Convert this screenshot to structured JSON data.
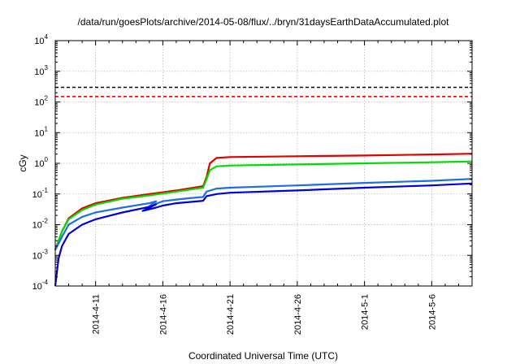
{
  "chart_data": {
    "type": "line",
    "title": "/data/run/goesPlots/archive/2014-05-08/flux/../bryn/31daysEarthDataAccumulated.plot",
    "xlabel": "Coordinated Universal Time (UTC)",
    "ylabel": "cGy",
    "yscale": "log",
    "ylim": [
      0.0001,
      10000
    ],
    "xlim": [
      "2014-04-08",
      "2014-05-09"
    ],
    "y_ticks": [
      {
        "value": 0.0001,
        "mant": "10",
        "exp": "-4"
      },
      {
        "value": 0.001,
        "mant": "10",
        "exp": "-3"
      },
      {
        "value": 0.01,
        "mant": "10",
        "exp": "-2"
      },
      {
        "value": 0.1,
        "mant": "10",
        "exp": "-1"
      },
      {
        "value": 1,
        "mant": "10",
        "exp": "0"
      },
      {
        "value": 10,
        "mant": "10",
        "exp": "1"
      },
      {
        "value": 100,
        "mant": "10",
        "exp": "2"
      },
      {
        "value": 1000,
        "mant": "10",
        "exp": "3"
      },
      {
        "value": 10000,
        "mant": "10",
        "exp": "4"
      }
    ],
    "x_ticks": [
      {
        "value": "2014-04-11",
        "label": "2014-4-11"
      },
      {
        "value": "2014-04-16",
        "label": "2014-4-16"
      },
      {
        "value": "2014-04-21",
        "label": "2014-4-21"
      },
      {
        "value": "2014-04-26",
        "label": "2014-4-26"
      },
      {
        "value": "2014-05-01",
        "label": "2014-5-1"
      },
      {
        "value": "2014-05-06",
        "label": "2014-5-6"
      }
    ],
    "grid": true,
    "reference_lines": [
      {
        "y": 300,
        "color": "#000000",
        "style": "dashed"
      },
      {
        "y": 150,
        "color": "#ff0000",
        "style": "dashed"
      }
    ],
    "series": [
      {
        "color": "#e00000",
        "points": [
          [
            "2014-04-08T00:00",
            0.0015
          ],
          [
            "2014-04-08T12:00",
            0.006
          ],
          [
            "2014-04-09T00:00",
            0.016
          ],
          [
            "2014-04-10T00:00",
            0.034
          ],
          [
            "2014-04-11T00:00",
            0.05
          ],
          [
            "2014-04-13T00:00",
            0.075
          ],
          [
            "2014-04-15T00:00",
            0.1
          ],
          [
            "2014-04-17T00:00",
            0.13
          ],
          [
            "2014-04-19T00:00",
            0.18
          ],
          [
            "2014-04-19T06:00",
            0.35
          ],
          [
            "2014-04-19T12:00",
            1.0
          ],
          [
            "2014-04-20T00:00",
            1.5
          ],
          [
            "2014-04-21T00:00",
            1.6
          ],
          [
            "2014-04-26T00:00",
            1.7
          ],
          [
            "2014-05-01T00:00",
            1.8
          ],
          [
            "2014-05-06T00:00",
            1.95
          ],
          [
            "2014-05-09T00:00",
            2.05
          ]
        ]
      },
      {
        "color": "#00dd00",
        "points": [
          [
            "2014-04-08T00:00",
            0.0015
          ],
          [
            "2014-04-08T12:00",
            0.006
          ],
          [
            "2014-04-09T00:00",
            0.015
          ],
          [
            "2014-04-10T00:00",
            0.03
          ],
          [
            "2014-04-11T00:00",
            0.045
          ],
          [
            "2014-04-13T00:00",
            0.07
          ],
          [
            "2014-04-15T00:00",
            0.09
          ],
          [
            "2014-04-17T00:00",
            0.12
          ],
          [
            "2014-04-19T00:00",
            0.16
          ],
          [
            "2014-04-19T06:00",
            0.3
          ],
          [
            "2014-04-19T12:00",
            0.6
          ],
          [
            "2014-04-20T00:00",
            0.8
          ],
          [
            "2014-04-21T00:00",
            0.85
          ],
          [
            "2014-04-26T00:00",
            0.92
          ],
          [
            "2014-05-01T00:00",
            1.0
          ],
          [
            "2014-05-06T00:00",
            1.08
          ],
          [
            "2014-05-09T00:00",
            1.15
          ]
        ]
      },
      {
        "color": "#1e6fe0",
        "points": [
          [
            "2014-04-08T00:00",
            0.0015
          ],
          [
            "2014-04-08T12:00",
            0.004
          ],
          [
            "2014-04-09T00:00",
            0.01
          ],
          [
            "2014-04-10T00:00",
            0.018
          ],
          [
            "2014-04-11T00:00",
            0.025
          ],
          [
            "2014-04-13T00:00",
            0.036
          ],
          [
            "2014-04-15T00:00",
            0.05
          ],
          [
            "2014-04-15T12:00",
            0.058
          ],
          [
            "2014-04-15T00:00",
            0.04
          ],
          [
            "2014-04-16T00:00",
            0.058
          ],
          [
            "2014-04-17T00:00",
            0.066
          ],
          [
            "2014-04-18T00:00",
            0.073
          ],
          [
            "2014-04-19T00:00",
            0.08
          ],
          [
            "2014-04-19T06:00",
            0.12
          ],
          [
            "2014-04-20T00:00",
            0.15
          ],
          [
            "2014-04-21T00:00",
            0.16
          ],
          [
            "2014-04-26T00:00",
            0.19
          ],
          [
            "2014-05-01T00:00",
            0.23
          ],
          [
            "2014-05-06T00:00",
            0.27
          ],
          [
            "2014-05-09T00:00",
            0.31
          ]
        ]
      },
      {
        "color": "#0000dd",
        "points": [
          [
            "2014-04-08T00:00",
            0.0001
          ],
          [
            "2014-04-08T06:00",
            0.0008
          ],
          [
            "2014-04-08T12:00",
            0.002
          ],
          [
            "2014-04-09T00:00",
            0.005
          ],
          [
            "2014-04-10T00:00",
            0.01
          ],
          [
            "2014-04-11T00:00",
            0.015
          ],
          [
            "2014-04-13T00:00",
            0.025
          ],
          [
            "2014-04-15T00:00",
            0.038
          ],
          [
            "2014-04-15T12:00",
            0.046
          ],
          [
            "2014-04-14T12:00",
            0.028
          ],
          [
            "2014-04-15T12:00",
            0.036
          ],
          [
            "2014-04-16T00:00",
            0.042
          ],
          [
            "2014-04-17T00:00",
            0.05
          ],
          [
            "2014-04-18T00:00",
            0.055
          ],
          [
            "2014-04-19T00:00",
            0.06
          ],
          [
            "2014-04-19T06:00",
            0.085
          ],
          [
            "2014-04-20T00:00",
            0.1
          ],
          [
            "2014-04-21T00:00",
            0.11
          ],
          [
            "2014-04-26T00:00",
            0.13
          ],
          [
            "2014-05-01T00:00",
            0.16
          ],
          [
            "2014-05-06T00:00",
            0.19
          ],
          [
            "2014-05-09T00:00",
            0.22
          ]
        ]
      }
    ]
  }
}
